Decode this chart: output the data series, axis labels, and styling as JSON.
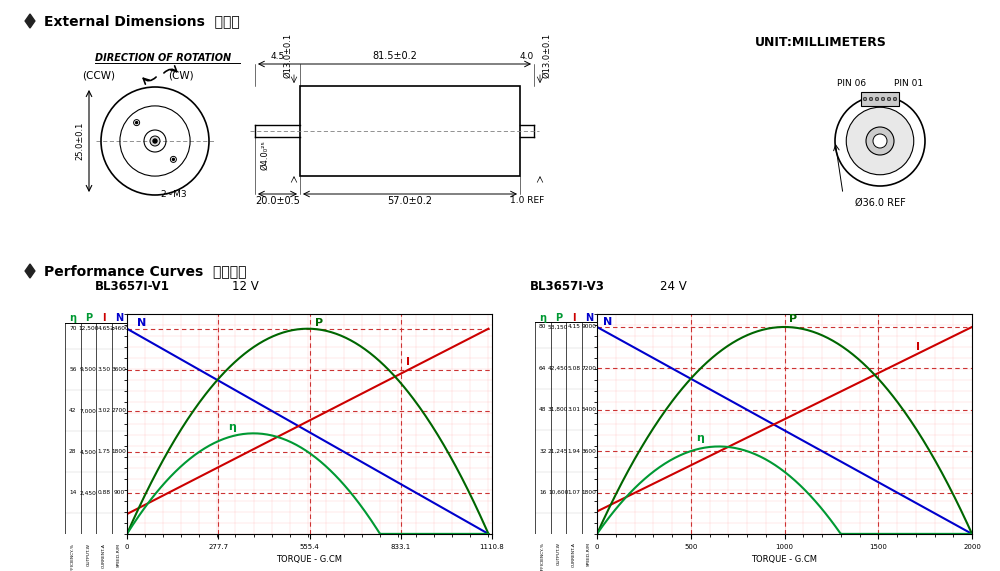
{
  "title_ext_dim": "External Dimensions  外形图",
  "title_perf_curves": "Performance Curves  性能曲线",
  "unit_text": "UNIT:MILLIMETERS",
  "direction_text": "DIRECTION OF ROTATION",
  "ccw_text": "(CCW)",
  "cw_text": "(CW)",
  "dim_81_5": "81.5±0.2",
  "dim_57_0": "57.0±0.2",
  "dim_20_0": "20.0±0.5",
  "dim_4_5": "4.5",
  "dim_4_0_right": "4.0",
  "dim_1_0": "1.0 REF",
  "dim_d13_top": "Ø13.0±0.1",
  "dim_d13_right": "Ø13.0±0.1",
  "dim_d4": "Ø4.0₀²⁵",
  "dim_25": "25.0±0.1",
  "dim_2m3": "2~M3",
  "dim_d36": "Ø36.0 REF",
  "pin06": "PIN 06",
  "pin01": "PIN 01",
  "chart1_title": "BL3657I-V1",
  "chart1_voltage": "12 V",
  "chart2_title": "BL3657I-V3",
  "chart2_voltage": "24 V",
  "chart1_xlabel": "TORQUE - G.CM",
  "chart2_xlabel": "TORQUE - G.CM",
  "bg_color": "#ffffff",
  "grid_color": "#ffaaaa",
  "curve_N_color": "#0000cc",
  "curve_eta_color": "#009933",
  "curve_P_color": "#006600",
  "curve_I_color": "#cc0000",
  "diamond_color": "#222222"
}
